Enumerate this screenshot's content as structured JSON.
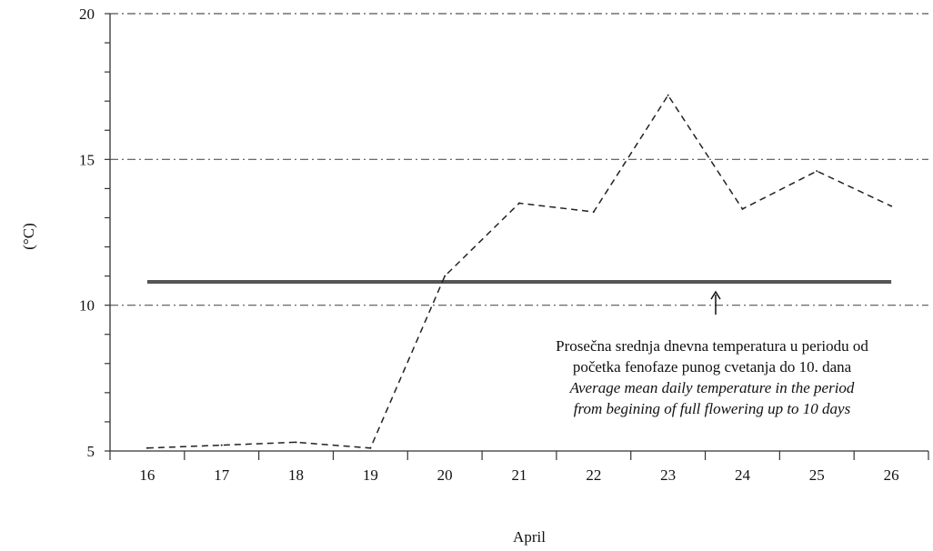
{
  "chart_data": {
    "type": "line",
    "categories": [
      "16",
      "17",
      "18",
      "19",
      "20",
      "21",
      "22",
      "23",
      "24",
      "25",
      "26"
    ],
    "series": [
      {
        "values": [
          5.1,
          5.2,
          5.3,
          5.1,
          11.0,
          13.5,
          13.2,
          17.2,
          13.3,
          14.6,
          13.4
        ],
        "style": "dashed",
        "color": "#222222"
      }
    ],
    "reference_line": {
      "value": 10.8,
      "color": "#555555",
      "label": [
        "Prosečna srednja dnevna temperatura u periodu od",
        "početka fenofaze punog cvetanja do 10. dana",
        "Average mean  daily temperature in the period",
        "from begining of full flowering up to 10 days"
      ]
    },
    "title": "",
    "xlabel": "April",
    "ylabel": "(°C)",
    "ylim": [
      5,
      20
    ],
    "yticks": [
      "5",
      "10",
      "15",
      "20"
    ],
    "gridlines": {
      "values": [
        10,
        15,
        20
      ],
      "style": "dash-dot",
      "color": "#555555"
    },
    "grid": true,
    "legend": "none"
  }
}
